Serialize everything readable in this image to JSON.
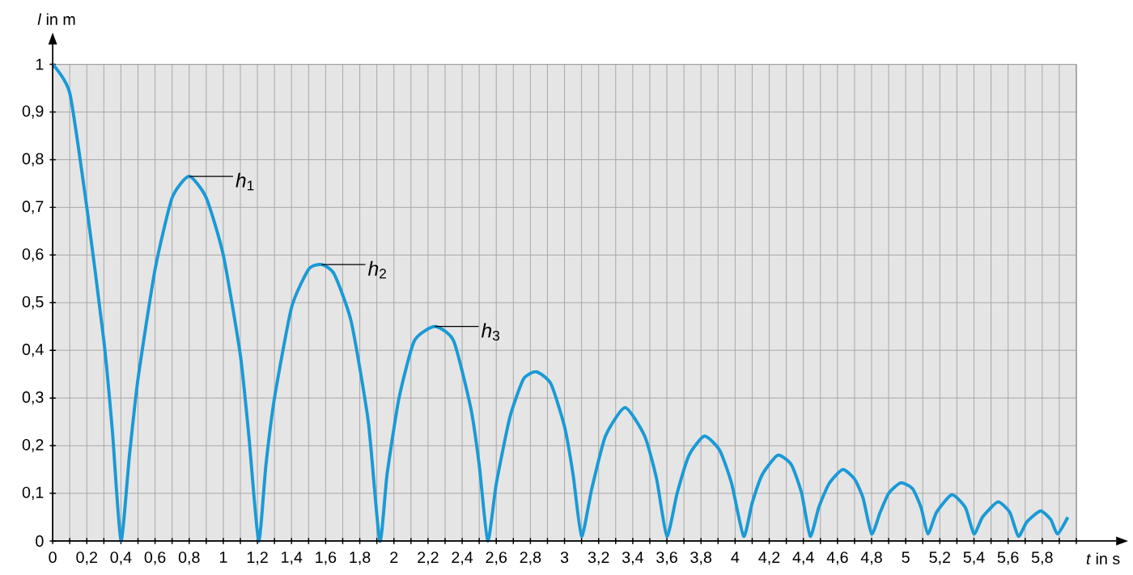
{
  "chart_data": {
    "type": "line",
    "xlabel": "*t* in s",
    "ylabel": "*l* in m",
    "x": [
      0,
      0.1,
      0.2,
      0.3,
      0.35,
      0.4,
      0.45,
      0.5,
      0.6,
      0.7,
      0.8,
      0.9,
      1.0,
      1.1,
      1.15,
      1.207,
      1.25,
      1.3,
      1.4,
      1.5,
      1.576,
      1.65,
      1.75,
      1.85,
      1.917,
      1.96,
      2.03,
      2.12,
      2.24,
      2.35,
      2.45,
      2.5,
      2.55,
      2.6,
      2.68,
      2.76,
      2.835,
      2.92,
      3.0,
      3.05,
      3.1,
      3.16,
      3.24,
      3.355,
      3.47,
      3.54,
      3.6,
      3.66,
      3.73,
      3.82,
      3.91,
      3.98,
      4.05,
      4.1,
      4.16,
      4.25,
      4.33,
      4.39,
      4.44,
      4.49,
      4.55,
      4.63,
      4.7,
      4.75,
      4.8,
      4.85,
      4.9,
      4.97,
      5.04,
      5.09,
      5.13,
      5.18,
      5.27,
      5.35,
      5.4,
      5.45,
      5.54,
      5.61,
      5.66,
      5.71,
      5.79,
      5.85,
      5.89,
      5.95
    ],
    "series": [
      {
        "color": "#1a9ad6",
        "values": [
          1,
          0.94,
          0.7,
          0.42,
          0.23,
          0,
          0.18,
          0.34,
          0.57,
          0.72,
          0.765,
          0.72,
          0.6,
          0.39,
          0.22,
          0,
          0.16,
          0.3,
          0.49,
          0.57,
          0.58,
          0.56,
          0.46,
          0.25,
          0,
          0.14,
          0.3,
          0.42,
          0.45,
          0.42,
          0.28,
          0.16,
          0,
          0.12,
          0.26,
          0.34,
          0.355,
          0.33,
          0.24,
          0.14,
          0.01,
          0.11,
          0.22,
          0.28,
          0.22,
          0.13,
          0.01,
          0.1,
          0.18,
          0.22,
          0.19,
          0.12,
          0.01,
          0.08,
          0.14,
          0.18,
          0.16,
          0.1,
          0.01,
          0.07,
          0.12,
          0.15,
          0.13,
          0.09,
          0.015,
          0.06,
          0.1,
          0.122,
          0.11,
          0.07,
          0.015,
          0.06,
          0.097,
          0.07,
          0.015,
          0.05,
          0.082,
          0.06,
          0.01,
          0.04,
          0.063,
          0.045,
          0.015,
          0.05
        ]
      }
    ],
    "annotations": [
      {
        "text": "*h*$_{1}$",
        "x": 0.8,
        "y": 0.765
      },
      {
        "text": "*h*$_{2}$",
        "x": 1.576,
        "y": 0.58
      },
      {
        "text": "*h*$_{3}$",
        "x": 2.24,
        "y": 0.45
      }
    ],
    "xlim": [
      0,
      6
    ],
    "ylim": [
      0,
      1
    ],
    "xticks": [
      0,
      {
        "value": 0.1,
        "label": null
      },
      {
        "value": 0.2,
        "label": "0,2"
      },
      {
        "value": 0.3,
        "label": null
      },
      {
        "value": 0.4,
        "label": "0,4"
      },
      {
        "value": 0.5,
        "label": null
      },
      {
        "value": 0.6,
        "label": "0,6"
      },
      {
        "value": 0.7,
        "label": null
      },
      {
        "value": 0.8,
        "label": "0,8"
      },
      {
        "value": 0.9,
        "label": null
      },
      1,
      {
        "value": 1.1,
        "label": null
      },
      {
        "value": 1.2,
        "label": "1,2"
      },
      {
        "value": 1.3,
        "label": null
      },
      {
        "value": 1.4,
        "label": "1,4"
      },
      {
        "value": 1.5,
        "label": null
      },
      {
        "value": 1.6,
        "label": "1,6"
      },
      {
        "value": 1.7,
        "label": null
      },
      {
        "value": 1.8,
        "label": "1,8"
      },
      {
        "value": 1.9,
        "label": null
      },
      2,
      {
        "value": 2.1,
        "label": null
      },
      {
        "value": 2.2,
        "label": "2,2"
      },
      {
        "value": 2.3,
        "label": null
      },
      {
        "value": 2.4,
        "label": "2,4"
      },
      {
        "value": 2.5,
        "label": null
      },
      {
        "value": 2.6,
        "label": "2,6"
      },
      {
        "value": 2.7,
        "label": null
      },
      {
        "value": 2.8,
        "label": "2,8"
      },
      {
        "value": 2.9,
        "label": null
      },
      3,
      {
        "value": 3.1,
        "label": null
      },
      {
        "value": 3.2,
        "label": "3,2"
      },
      {
        "value": 3.3,
        "label": null
      },
      {
        "value": 3.4,
        "label": "3,4"
      },
      {
        "value": 3.5,
        "label": null
      },
      {
        "value": 3.6,
        "label": "3,6"
      },
      {
        "value": 3.7,
        "label": null
      },
      {
        "value": 3.8,
        "label": "3,8"
      },
      {
        "value": 3.9,
        "label": null
      },
      4,
      {
        "value": 4.1,
        "label": null
      },
      {
        "value": 4.2,
        "label": "4,2"
      },
      {
        "value": 4.3,
        "label": null
      },
      {
        "value": 4.4,
        "label": "4,4"
      },
      {
        "value": 4.5,
        "label": null
      },
      {
        "value": 4.6,
        "label": "4,6"
      },
      {
        "value": 4.7,
        "label": null
      },
      {
        "value": 4.8,
        "label": "4,8"
      },
      {
        "value": 4.9,
        "label": null
      },
      5,
      {
        "value": 5.1,
        "label": null
      },
      {
        "value": 5.2,
        "label": "5,2"
      },
      {
        "value": 5.3,
        "label": null
      },
      {
        "value": 5.4,
        "label": "5,4"
      },
      {
        "value": 5.5,
        "label": null
      },
      {
        "value": 5.6,
        "label": "5,6"
      },
      {
        "value": 5.7,
        "label": null
      },
      {
        "value": 5.8,
        "label": "5,8"
      },
      {
        "value": 5.9,
        "label": null
      },
      {
        "value": 6,
        "label": null
      }
    ],
    "yticks": [
      0,
      {
        "value": 0.1,
        "label": "0,1"
      },
      {
        "value": 0.2,
        "label": "0,2"
      },
      {
        "value": 0.3,
        "label": "0,3"
      },
      {
        "value": 0.4,
        "label": "0,4"
      },
      {
        "value": 0.5,
        "label": "0,5"
      },
      {
        "value": 0.6,
        "label": "0,6"
      },
      {
        "value": 0.7,
        "label": "0,7"
      },
      {
        "value": 0.8,
        "label": "0,8"
      },
      {
        "value": 0.9,
        "label": "0,9"
      },
      1
    ],
    "grid": true,
    "marker": "none",
    "line_style": "solid"
  }
}
